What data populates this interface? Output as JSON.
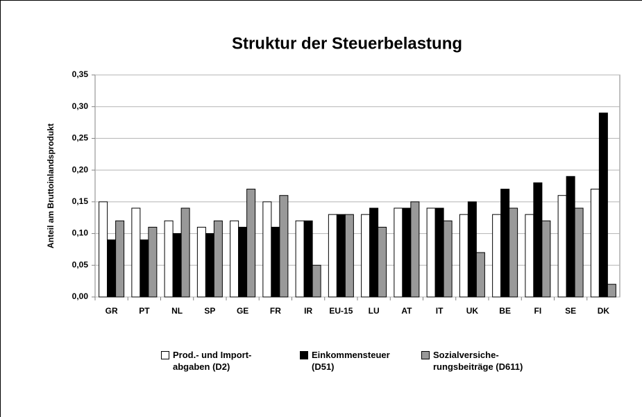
{
  "chart_data": {
    "type": "bar",
    "title": "Struktur der Steuerbelastung",
    "y_label": "Anteil am Bruttoinlandsprodukt",
    "categories": [
      "GR",
      "PT",
      "NL",
      "SP",
      "GE",
      "FR",
      "IR",
      "EU-15",
      "LU",
      "AT",
      "IT",
      "UK",
      "BE",
      "FI",
      "SE",
      "DK"
    ],
    "series": [
      {
        "name": "Prod.- und Import-\nabgaben (D2)",
        "color": "#ffffff",
        "values": [
          0.15,
          0.14,
          0.12,
          0.11,
          0.12,
          0.15,
          0.12,
          0.13,
          0.13,
          0.14,
          0.14,
          0.13,
          0.13,
          0.13,
          0.16,
          0.17
        ]
      },
      {
        "name": "Einkommensteuer\n(D51)",
        "color": "#000000",
        "values": [
          0.09,
          0.09,
          0.1,
          0.1,
          0.11,
          0.11,
          0.12,
          0.13,
          0.14,
          0.14,
          0.14,
          0.15,
          0.17,
          0.18,
          0.19,
          0.29
        ]
      },
      {
        "name": "Sozialversiche-\nrungsbeiträge (D611)",
        "color": "#999999",
        "values": [
          0.12,
          0.11,
          0.14,
          0.12,
          0.17,
          0.16,
          0.05,
          0.13,
          0.11,
          0.15,
          0.12,
          0.07,
          0.14,
          0.12,
          0.14,
          0.02
        ]
      }
    ],
    "ylim": [
      0,
      0.35
    ],
    "yticks": [
      {
        "value": 0,
        "label": "0,00"
      },
      {
        "value": 0.05,
        "label": "0,05"
      },
      {
        "value": 0.1,
        "label": "0,10"
      },
      {
        "value": 0.15,
        "label": "0,15"
      },
      {
        "value": 0.2,
        "label": "0,20"
      },
      {
        "value": 0.25,
        "label": "0,25"
      },
      {
        "value": 0.3,
        "label": "0,30"
      },
      {
        "value": 0.35,
        "label": "0,35"
      }
    ],
    "grid": true
  }
}
